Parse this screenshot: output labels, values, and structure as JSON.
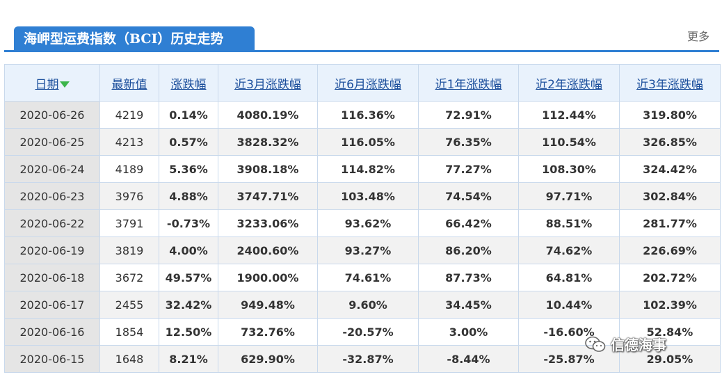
{
  "header": {
    "title": "海岬型运费指数（BCI）历史走势",
    "more_label": "更多"
  },
  "table": {
    "columns": [
      "日期",
      "最新值",
      "涨跌幅",
      "近3月涨跌幅",
      "近6月涨跌幅",
      "近1年涨跌幅",
      "近2年涨跌幅",
      "近3年涨跌幅"
    ],
    "rows": [
      [
        "2020-06-26",
        "4219",
        "0.14%",
        "4080.19%",
        "116.36%",
        "72.91%",
        "112.44%",
        "319.80%"
      ],
      [
        "2020-06-25",
        "4213",
        "0.57%",
        "3828.32%",
        "116.05%",
        "76.35%",
        "110.54%",
        "326.85%"
      ],
      [
        "2020-06-24",
        "4189",
        "5.36%",
        "3908.18%",
        "114.82%",
        "77.27%",
        "108.30%",
        "324.42%"
      ],
      [
        "2020-06-23",
        "3976",
        "4.88%",
        "3747.71%",
        "103.48%",
        "74.54%",
        "97.71%",
        "302.84%"
      ],
      [
        "2020-06-22",
        "3791",
        "-0.73%",
        "3233.06%",
        "93.62%",
        "66.42%",
        "88.51%",
        "281.77%"
      ],
      [
        "2020-06-19",
        "3819",
        "4.00%",
        "2400.60%",
        "93.27%",
        "86.20%",
        "74.62%",
        "226.69%"
      ],
      [
        "2020-06-18",
        "3672",
        "49.57%",
        "1900.00%",
        "74.61%",
        "87.73%",
        "64.81%",
        "202.72%"
      ],
      [
        "2020-06-17",
        "2455",
        "32.42%",
        "949.48%",
        "9.60%",
        "34.45%",
        "10.44%",
        "102.39%"
      ],
      [
        "2020-06-16",
        "1854",
        "12.50%",
        "732.76%",
        "-20.57%",
        "3.00%",
        "-16.60%",
        "52.84%"
      ],
      [
        "2020-06-15",
        "1648",
        "8.21%",
        "629.90%",
        "-32.87%",
        "-8.44%",
        "-25.87%",
        "29.05%"
      ]
    ]
  },
  "colors": {
    "accent": "#2f7fd3",
    "positive": "#e60012",
    "negative": "#008800"
  },
  "icons": {
    "sort": "sort-desc-arrow-icon",
    "watermark": "wechat-icon"
  },
  "watermark": {
    "text": "信德海事"
  }
}
